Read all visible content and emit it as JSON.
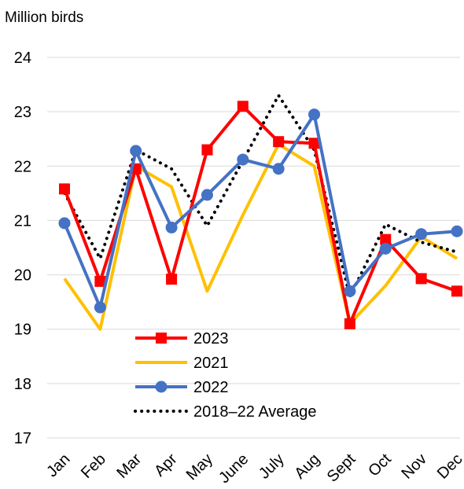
{
  "chart_data": {
    "type": "line",
    "subtitle": "Million birds",
    "categories": [
      "Jan",
      "Feb",
      "Mar",
      "Apr",
      "May",
      "June",
      "July",
      "Aug",
      "Sept",
      "Oct",
      "Nov",
      "Dec"
    ],
    "series": [
      {
        "name": "2023",
        "color": "#ff0000",
        "marker": "square",
        "values": [
          21.58,
          19.88,
          21.95,
          19.92,
          22.3,
          23.1,
          22.45,
          22.42,
          19.1,
          20.65,
          19.93,
          19.7
        ]
      },
      {
        "name": "2021",
        "color": "#ffc000",
        "values": [
          19.93,
          19.0,
          22.0,
          21.62,
          19.7,
          21.1,
          22.4,
          22.0,
          19.1,
          19.8,
          20.7,
          20.3
        ]
      },
      {
        "name": "2022",
        "color": "#4472c4",
        "marker": "circle",
        "values": [
          20.95,
          19.4,
          22.28,
          20.87,
          21.47,
          22.12,
          21.95,
          22.95,
          19.7,
          20.48,
          20.75,
          20.8
        ]
      },
      {
        "name": "2018–22 Average",
        "color": "#000000",
        "dotted": true,
        "values": [
          21.5,
          20.3,
          22.3,
          21.95,
          20.9,
          22.1,
          23.3,
          22.3,
          19.6,
          20.93,
          20.6,
          20.42
        ]
      }
    ],
    "ylim": [
      17,
      24
    ],
    "yticks": [
      17,
      18,
      19,
      20,
      21,
      22,
      23,
      24
    ],
    "grid": true
  }
}
